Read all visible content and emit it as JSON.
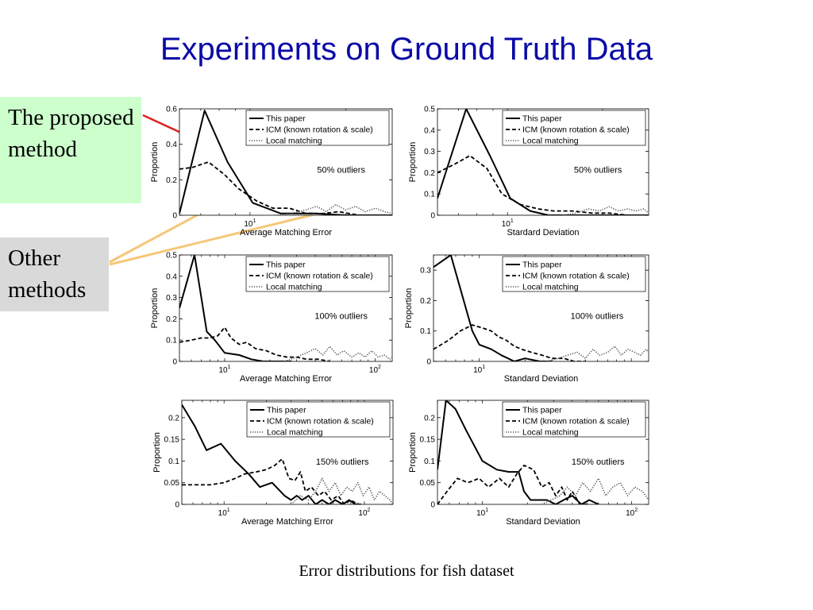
{
  "slide": {
    "title": "Experiments on Ground Truth Data",
    "proposed_label": "The proposed method",
    "other_label": "Other methods",
    "caption": "Error distributions for fish dataset",
    "colors": {
      "title": "#0a0aa8",
      "proposed_box": "#ccffcc",
      "other_box": "#d9d9d9",
      "red_arrow": "#e02020",
      "tan_arrow": "#f5c778"
    }
  },
  "chart_data": [
    {
      "type": "line",
      "id": "r1c1",
      "xlabel": "Average Matching Error",
      "ylabel": "Proportion",
      "xscale": "log",
      "xlim": [
        6,
        28
      ],
      "ylim": [
        0,
        0.6
      ],
      "yticks": [
        0,
        0.2,
        0.4,
        0.6
      ],
      "ytick_labels": [
        "0",
        "0.2",
        "0.4",
        "0.6"
      ],
      "xticks": [
        10
      ],
      "xtick_labels": [
        "10^1"
      ],
      "annotation": "50% outliers",
      "legend": [
        "This paper",
        "ICM (known rotation & scale)",
        "Local matching"
      ],
      "series": [
        {
          "name": "This paper",
          "style": "solid",
          "x": [
            6,
            7.2,
            8.5,
            10.2,
            12.5,
            16,
            20,
            28
          ],
          "y": [
            0.01,
            0.59,
            0.3,
            0.07,
            0.01,
            0.01,
            0.0,
            0.0
          ]
        },
        {
          "name": "ICM (known rotation & scale)",
          "style": "dashed",
          "x": [
            6,
            6.6,
            7.4,
            8.3,
            9.2,
            10.5,
            11.8,
            13.3,
            15,
            17,
            19,
            22,
            25,
            28
          ],
          "y": [
            0.26,
            0.27,
            0.3,
            0.23,
            0.15,
            0.08,
            0.04,
            0.04,
            0.01,
            0.01,
            0.02,
            0.0,
            0.0,
            0.0
          ]
        },
        {
          "name": "Local matching",
          "style": "dotted",
          "x": [
            12,
            13.5,
            15,
            16.2,
            17.4,
            18.6,
            20,
            21.5,
            23,
            24.8,
            26.5,
            28
          ],
          "y": [
            0.0,
            0.01,
            0.03,
            0.05,
            0.02,
            0.06,
            0.03,
            0.05,
            0.02,
            0.04,
            0.02,
            0.01
          ]
        }
      ]
    },
    {
      "type": "line",
      "id": "r1c2",
      "xlabel": "Stardard Deviation",
      "ylabel": "Proportion",
      "xscale": "log",
      "xlim": [
        6,
        28
      ],
      "ylim": [
        0,
        0.5
      ],
      "yticks": [
        0,
        0.1,
        0.2,
        0.3,
        0.4,
        0.5
      ],
      "ytick_labels": [
        "0",
        "0.1",
        "0.2",
        "0.3",
        "0.4",
        "0.5"
      ],
      "xticks": [
        10
      ],
      "xtick_labels": [
        "10^1"
      ],
      "annotation": "50% outliers",
      "legend": [
        "This paper",
        "ICM (known rotation & scale)",
        "Local matching"
      ],
      "series": [
        {
          "name": "This paper",
          "style": "solid",
          "x": [
            6,
            7.4,
            8.8,
            10.2,
            11.8,
            13.5,
            16,
            20,
            28
          ],
          "y": [
            0.08,
            0.5,
            0.28,
            0.08,
            0.02,
            0.0,
            0.0,
            0.0,
            0.0
          ]
        },
        {
          "name": "ICM (known rotation & scale)",
          "style": "dashed",
          "x": [
            6,
            6.8,
            7.6,
            8.6,
            9.6,
            11,
            12.5,
            14,
            16,
            18.5,
            21,
            24,
            28
          ],
          "y": [
            0.2,
            0.24,
            0.28,
            0.22,
            0.1,
            0.05,
            0.03,
            0.02,
            0.02,
            0.01,
            0.01,
            0.0,
            0.0
          ]
        },
        {
          "name": "Local matching",
          "style": "dotted",
          "x": [
            15,
            16.5,
            18,
            19.5,
            21,
            22.5,
            24,
            25.5,
            27,
            28
          ],
          "y": [
            0.0,
            0.01,
            0.03,
            0.02,
            0.04,
            0.02,
            0.03,
            0.02,
            0.03,
            0.01
          ]
        }
      ]
    },
    {
      "type": "line",
      "id": "r2c1",
      "xlabel": "Average Matching Error",
      "ylabel": "Proportion",
      "xscale": "log",
      "xlim": [
        5,
        130
      ],
      "ylim": [
        0,
        0.5
      ],
      "yticks": [
        0,
        0.1,
        0.2,
        0.3,
        0.4,
        0.5
      ],
      "ytick_labels": [
        "0",
        "0.1",
        "0.2",
        "0.3",
        "0.4",
        "0.5"
      ],
      "xticks": [
        10,
        100
      ],
      "xtick_labels": [
        "10^1",
        "10^2"
      ],
      "annotation": "100% outliers",
      "legend": [
        "This paper",
        "ICM (known rotation & scale)",
        "Local matching"
      ],
      "series": [
        {
          "name": "This paper",
          "style": "solid",
          "x": [
            5,
            6.3,
            7.6,
            8.6,
            10,
            12.5,
            15,
            18,
            22,
            28
          ],
          "y": [
            0.25,
            0.5,
            0.14,
            0.1,
            0.04,
            0.03,
            0.01,
            0.0,
            0.0,
            0.0
          ]
        },
        {
          "name": "ICM (known rotation & scale)",
          "style": "dashed",
          "x": [
            5,
            6,
            7,
            8,
            9,
            10,
            11,
            12.5,
            14,
            16,
            19,
            22,
            26,
            30,
            35,
            42,
            50
          ],
          "y": [
            0.09,
            0.1,
            0.11,
            0.11,
            0.12,
            0.16,
            0.11,
            0.08,
            0.09,
            0.06,
            0.05,
            0.03,
            0.02,
            0.02,
            0.01,
            0.01,
            0.0
          ]
        },
        {
          "name": "Local matching",
          "style": "dotted",
          "x": [
            25,
            30,
            35,
            40,
            45,
            50,
            56,
            62,
            70,
            78,
            86,
            95,
            105,
            115,
            125,
            130
          ],
          "y": [
            0.0,
            0.02,
            0.04,
            0.06,
            0.03,
            0.07,
            0.03,
            0.05,
            0.02,
            0.04,
            0.02,
            0.05,
            0.02,
            0.03,
            0.01,
            0.02
          ]
        }
      ]
    },
    {
      "type": "line",
      "id": "r2c2",
      "xlabel": "Standard Deviation",
      "ylabel": "Proportion",
      "xscale": "log",
      "xlim": [
        5,
        130
      ],
      "ylim": [
        0,
        0.35
      ],
      "yticks": [
        0,
        0.1,
        0.2,
        0.3
      ],
      "ytick_labels": [
        "0",
        "0.1",
        "0.2",
        "0.3"
      ],
      "xticks": [
        10
      ],
      "xtick_labels": [
        "10^1"
      ],
      "annotation": "100% outliers",
      "legend": [
        "This paper",
        "ICM (known rotation & scale)",
        "Local matching"
      ],
      "series": [
        {
          "name": "This paper",
          "style": "solid",
          "x": [
            5,
            6.5,
            7.7,
            9,
            10,
            12,
            14,
            17,
            20,
            25,
            30
          ],
          "y": [
            0.31,
            0.35,
            0.22,
            0.1,
            0.055,
            0.04,
            0.02,
            0.0,
            0.01,
            0.0,
            0.0
          ]
        },
        {
          "name": "ICM (known rotation & scale)",
          "style": "dashed",
          "x": [
            5,
            6.3,
            7.5,
            9,
            10.5,
            12,
            13.5,
            15,
            17,
            19,
            22,
            26,
            30,
            36,
            42,
            50
          ],
          "y": [
            0.04,
            0.07,
            0.1,
            0.12,
            0.11,
            0.1,
            0.08,
            0.07,
            0.05,
            0.04,
            0.03,
            0.02,
            0.01,
            0.01,
            0.0,
            0.0
          ]
        },
        {
          "name": "Local matching",
          "style": "dotted",
          "x": [
            28,
            33,
            38,
            44,
            50,
            56,
            62,
            70,
            78,
            86,
            95,
            105,
            115,
            125,
            130
          ],
          "y": [
            0.0,
            0.01,
            0.02,
            0.03,
            0.01,
            0.04,
            0.02,
            0.03,
            0.05,
            0.02,
            0.04,
            0.03,
            0.02,
            0.04,
            0.03
          ]
        }
      ]
    },
    {
      "type": "line",
      "id": "r3c1",
      "xlabel": "Average Matching Error",
      "ylabel": "Proportion",
      "xscale": "log",
      "xlim": [
        5,
        160
      ],
      "ylim": [
        0,
        0.24
      ],
      "yticks": [
        0,
        0.05,
        0.1,
        0.15,
        0.2
      ],
      "ytick_labels": [
        "0",
        "0.05",
        "0.1",
        "0.15",
        "0.2"
      ],
      "xticks": [
        10,
        100
      ],
      "xtick_labels": [
        "10^1",
        "10^2"
      ],
      "annotation": "150% outliers",
      "legend": [
        "This paper",
        "ICM (known rotation & scale)",
        "Local matching"
      ],
      "series": [
        {
          "name": "This paper",
          "style": "solid",
          "x": [
            5,
            6.2,
            7.5,
            9.5,
            12,
            15,
            18,
            22,
            27,
            30,
            33,
            36,
            40,
            45,
            50,
            56,
            62,
            70,
            78,
            86,
            95
          ],
          "y": [
            0.23,
            0.18,
            0.125,
            0.14,
            0.1,
            0.07,
            0.04,
            0.05,
            0.02,
            0.01,
            0.02,
            0.01,
            0.02,
            0.0,
            0.01,
            0.0,
            0.01,
            0.0,
            0.01,
            0.0,
            0.0
          ]
        },
        {
          "name": "ICM (known rotation & scale)",
          "style": "dashed",
          "x": [
            5,
            6.5,
            8,
            10,
            12,
            14,
            17,
            20,
            23,
            26,
            29,
            32,
            35,
            38,
            42,
            47,
            52,
            58,
            65,
            72,
            80,
            90
          ],
          "y": [
            0.045,
            0.045,
            0.045,
            0.05,
            0.06,
            0.07,
            0.075,
            0.08,
            0.09,
            0.105,
            0.06,
            0.055,
            0.075,
            0.03,
            0.04,
            0.02,
            0.03,
            0.01,
            0.02,
            0.0,
            0.01,
            0.0
          ]
        },
        {
          "name": "Local matching",
          "style": "dotted",
          "x": [
            30,
            35,
            40,
            45,
            50,
            56,
            62,
            68,
            75,
            82,
            90,
            98,
            108,
            118,
            128,
            140,
            152,
            160
          ],
          "y": [
            0.0,
            0.02,
            0.01,
            0.03,
            0.06,
            0.03,
            0.05,
            0.02,
            0.04,
            0.03,
            0.05,
            0.02,
            0.04,
            0.01,
            0.03,
            0.02,
            0.01,
            0.0
          ]
        }
      ]
    },
    {
      "type": "line",
      "id": "r3c2",
      "xlabel": "Standard Deviation",
      "ylabel": "Proportion",
      "xscale": "log",
      "xlim": [
        5,
        130
      ],
      "ylim": [
        0,
        0.24
      ],
      "yticks": [
        0,
        0.05,
        0.1,
        0.15,
        0.2
      ],
      "ytick_labels": [
        "0",
        "0.05",
        "0.1",
        "0.15",
        "0.2"
      ],
      "xticks": [
        10,
        100
      ],
      "xtick_labels": [
        "10^1",
        "10^2"
      ],
      "annotation": "150% outliers",
      "legend": [
        "This paper",
        "ICM (known rotation & scale)",
        "Local matching"
      ],
      "series": [
        {
          "name": "This paper",
          "style": "solid",
          "x": [
            5,
            5.7,
            6.6,
            7.8,
            10,
            12.5,
            15,
            17.5,
            19,
            21,
            24,
            27,
            31,
            35,
            40,
            46,
            52,
            60
          ],
          "y": [
            0.08,
            0.24,
            0.22,
            0.17,
            0.1,
            0.08,
            0.075,
            0.075,
            0.03,
            0.01,
            0.01,
            0.01,
            0.0,
            0.01,
            0.02,
            0.0,
            0.01,
            0.0
          ]
        },
        {
          "name": "ICM (known rotation & scale)",
          "style": "dashed",
          "x": [
            5,
            5.8,
            6.8,
            8,
            9.5,
            11,
            13,
            15,
            17,
            19,
            22,
            25,
            28,
            31,
            34,
            37,
            40,
            45,
            52
          ],
          "y": [
            0.0,
            0.03,
            0.06,
            0.05,
            0.06,
            0.04,
            0.06,
            0.04,
            0.07,
            0.09,
            0.08,
            0.04,
            0.05,
            0.02,
            0.04,
            0.01,
            0.03,
            0.0,
            0.0
          ]
        },
        {
          "name": "Local matching",
          "style": "dotted",
          "x": [
            25,
            29,
            33,
            37,
            42,
            47,
            53,
            60,
            67,
            75,
            84,
            94,
            105,
            118,
            130
          ],
          "y": [
            0.0,
            0.01,
            0.02,
            0.04,
            0.02,
            0.05,
            0.03,
            0.06,
            0.02,
            0.04,
            0.05,
            0.02,
            0.04,
            0.03,
            0.01
          ]
        }
      ]
    }
  ]
}
